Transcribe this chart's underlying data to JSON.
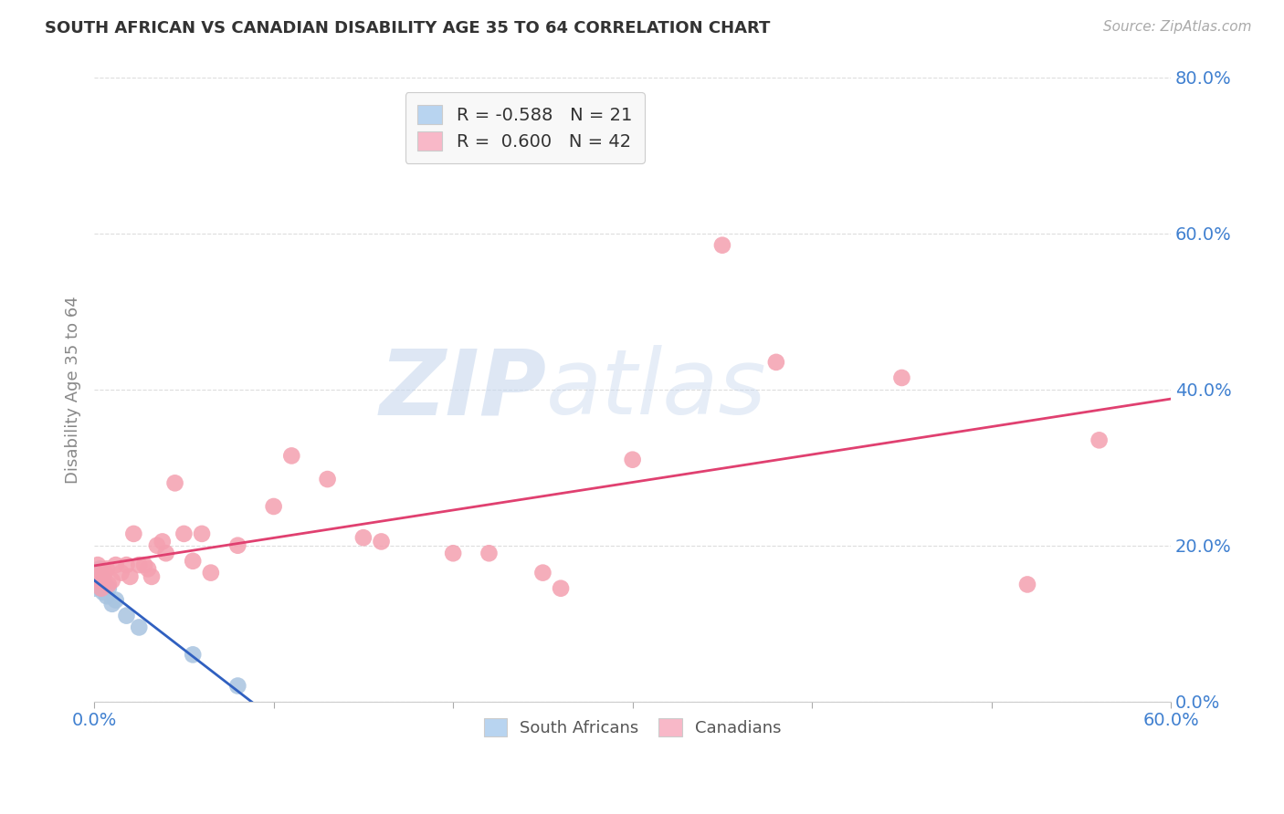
{
  "title": "SOUTH AFRICAN VS CANADIAN DISABILITY AGE 35 TO 64 CORRELATION CHART",
  "source": "Source: ZipAtlas.com",
  "ylabel": "Disability Age 35 to 64",
  "xlim": [
    0.0,
    0.6
  ],
  "ylim": [
    0.0,
    0.8
  ],
  "ytick_values": [
    0.0,
    0.2,
    0.4,
    0.6,
    0.8
  ],
  "xtick_values": [
    0.0,
    0.1,
    0.2,
    0.3,
    0.4,
    0.5,
    0.6
  ],
  "sa_R": -0.588,
  "sa_N": 21,
  "ca_R": 0.6,
  "ca_N": 42,
  "sa_color": "#a8c4e0",
  "ca_color": "#f4a0b0",
  "sa_line_color": "#3060c0",
  "ca_line_color": "#e04070",
  "sa_scatter": [
    [
      0.0,
      0.16
    ],
    [
      0.0,
      0.145
    ],
    [
      0.001,
      0.155
    ],
    [
      0.001,
      0.15
    ],
    [
      0.002,
      0.16
    ],
    [
      0.002,
      0.155
    ],
    [
      0.003,
      0.15
    ],
    [
      0.003,
      0.17
    ],
    [
      0.004,
      0.16
    ],
    [
      0.004,
      0.145
    ],
    [
      0.005,
      0.155
    ],
    [
      0.005,
      0.14
    ],
    [
      0.006,
      0.15
    ],
    [
      0.007,
      0.135
    ],
    [
      0.008,
      0.145
    ],
    [
      0.01,
      0.125
    ],
    [
      0.012,
      0.13
    ],
    [
      0.018,
      0.11
    ],
    [
      0.025,
      0.095
    ],
    [
      0.055,
      0.06
    ],
    [
      0.08,
      0.02
    ]
  ],
  "ca_scatter": [
    [
      0.001,
      0.16
    ],
    [
      0.002,
      0.175
    ],
    [
      0.003,
      0.155
    ],
    [
      0.004,
      0.145
    ],
    [
      0.005,
      0.16
    ],
    [
      0.006,
      0.165
    ],
    [
      0.007,
      0.17
    ],
    [
      0.008,
      0.15
    ],
    [
      0.01,
      0.155
    ],
    [
      0.012,
      0.175
    ],
    [
      0.015,
      0.165
    ],
    [
      0.018,
      0.175
    ],
    [
      0.02,
      0.16
    ],
    [
      0.022,
      0.215
    ],
    [
      0.025,
      0.175
    ],
    [
      0.028,
      0.175
    ],
    [
      0.03,
      0.17
    ],
    [
      0.032,
      0.16
    ],
    [
      0.035,
      0.2
    ],
    [
      0.038,
      0.205
    ],
    [
      0.04,
      0.19
    ],
    [
      0.045,
      0.28
    ],
    [
      0.05,
      0.215
    ],
    [
      0.055,
      0.18
    ],
    [
      0.06,
      0.215
    ],
    [
      0.065,
      0.165
    ],
    [
      0.08,
      0.2
    ],
    [
      0.1,
      0.25
    ],
    [
      0.11,
      0.315
    ],
    [
      0.13,
      0.285
    ],
    [
      0.15,
      0.21
    ],
    [
      0.16,
      0.205
    ],
    [
      0.2,
      0.19
    ],
    [
      0.22,
      0.19
    ],
    [
      0.25,
      0.165
    ],
    [
      0.26,
      0.145
    ],
    [
      0.3,
      0.31
    ],
    [
      0.35,
      0.585
    ],
    [
      0.38,
      0.435
    ],
    [
      0.45,
      0.415
    ],
    [
      0.52,
      0.15
    ],
    [
      0.56,
      0.335
    ]
  ],
  "watermark_zip": "ZIP",
  "watermark_atlas": "atlas",
  "legend_sa_label": "R = -0.588   N = 21",
  "legend_ca_label": "R =  0.600   N = 42",
  "sa_legend_face": "#b8d4f0",
  "ca_legend_face": "#f8b8c8",
  "title_color": "#333333",
  "axis_label_color": "#888888",
  "tick_label_color": "#4080d0",
  "grid_color": "#dddddd",
  "background_color": "#ffffff"
}
